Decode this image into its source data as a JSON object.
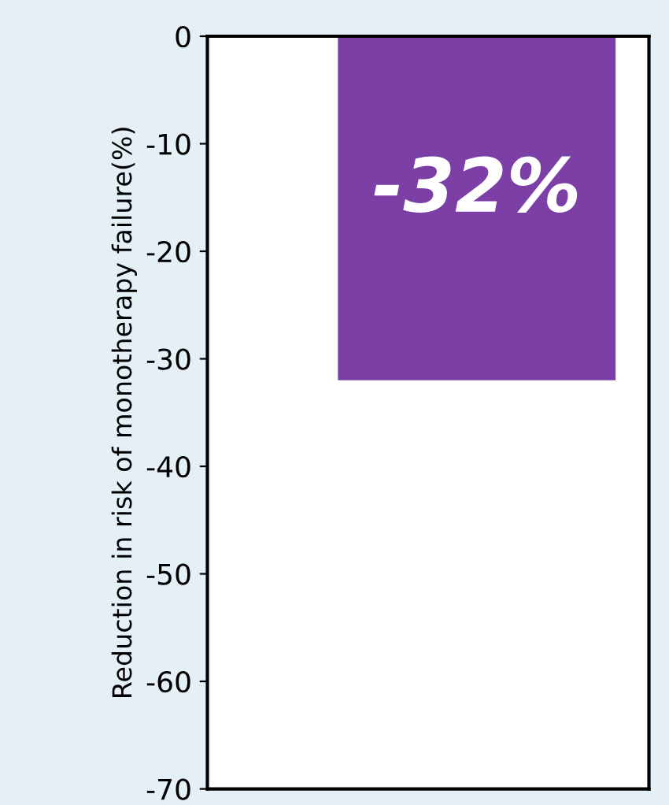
{
  "chart_data": {
    "type": "bar",
    "ylabel": "Reduction in risk of monotherapy failure(%)",
    "categories": [
      null
    ],
    "values": [
      -32
    ],
    "color": "#7b3fa6",
    "value_labels": [
      "-32%"
    ],
    "ylim": [
      -70,
      0
    ],
    "yticks": [
      -70,
      -60,
      -50,
      -40,
      -30,
      -20,
      -10,
      0
    ],
    "grid": false,
    "legend": false
  }
}
